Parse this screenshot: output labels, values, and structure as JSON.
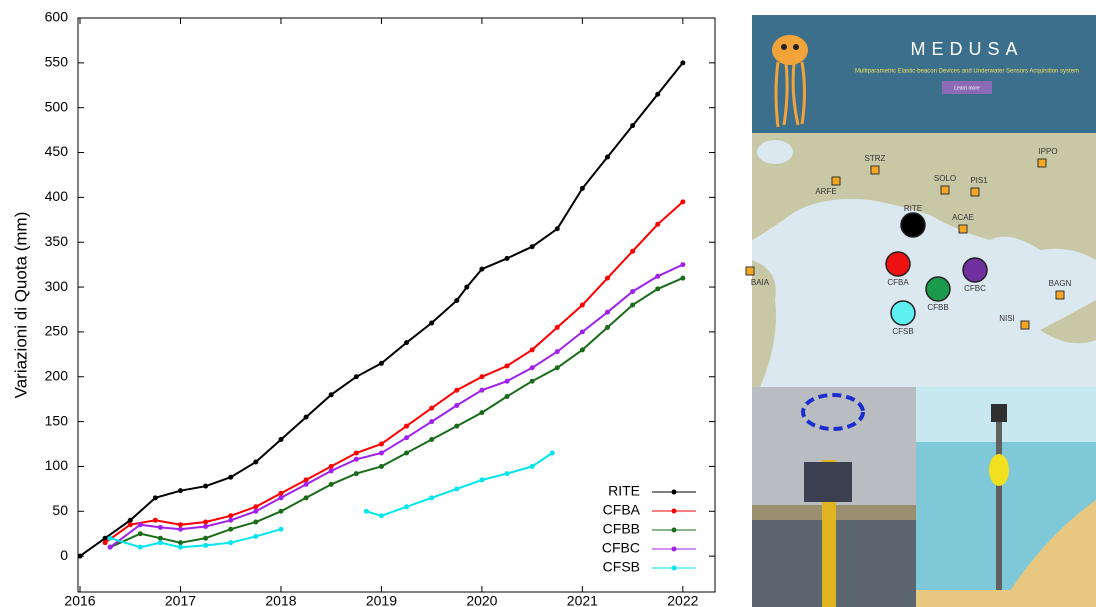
{
  "chart_data": {
    "type": "line",
    "y_label": "Variazioni di Quota (mm)",
    "xlim": [
      2015.98,
      2022.32
    ],
    "xticks": [
      2016,
      2017,
      2018,
      2019,
      2020,
      2021,
      2022
    ],
    "ylim": [
      -40,
      600
    ],
    "yticks": [
      0,
      50,
      100,
      150,
      200,
      250,
      300,
      350,
      400,
      450,
      500,
      550,
      600
    ],
    "legend": "lower right",
    "series": [
      {
        "name": "RITE",
        "color": "#000000",
        "x": [
          2016,
          2016.25,
          2016.5,
          2016.75,
          2017,
          2017.25,
          2017.5,
          2017.75,
          2018,
          2018.25,
          2018.5,
          2018.75,
          2019,
          2019.25,
          2019.5,
          2019.75,
          2019.85,
          2020,
          2020.25,
          2020.5,
          2020.75,
          2021,
          2021.25,
          2021.5,
          2021.75,
          2022
        ],
        "values": [
          0,
          20,
          40,
          65,
          73,
          78,
          88,
          105,
          130,
          155,
          180,
          200,
          215,
          238,
          260,
          285,
          300,
          320,
          332,
          345,
          365,
          410,
          445,
          480,
          515,
          550
        ]
      },
      {
        "name": "CFBA",
        "color": "#ff0000",
        "x": [
          2016.25,
          2016.5,
          2016.75,
          2017,
          2017.25,
          2017.5,
          2017.75,
          2018,
          2018.25,
          2018.5,
          2018.75,
          2019,
          2019.25,
          2019.5,
          2019.75,
          2020,
          2020.25,
          2020.5,
          2020.75,
          2021,
          2021.25,
          2021.5,
          2021.75,
          2022
        ],
        "values": [
          15,
          35,
          40,
          35,
          38,
          45,
          55,
          70,
          85,
          100,
          115,
          125,
          145,
          165,
          185,
          200,
          212,
          230,
          255,
          280,
          310,
          340,
          370,
          395
        ]
      },
      {
        "name": "CFBB",
        "color": "#1a6b1a",
        "x": [
          2016.3,
          2016.6,
          2016.8,
          2017,
          2017.25,
          2017.5,
          2017.75,
          2018,
          2018.25,
          2018.5,
          2018.75,
          2019,
          2019.25,
          2019.5,
          2019.75,
          2020,
          2020.25,
          2020.5,
          2020.75,
          2021,
          2021.25,
          2021.5,
          2021.75,
          2022
        ],
        "values": [
          10,
          25,
          20,
          15,
          20,
          30,
          38,
          50,
          65,
          80,
          92,
          100,
          115,
          130,
          145,
          160,
          178,
          195,
          210,
          230,
          255,
          280,
          298,
          310
        ]
      },
      {
        "name": "CFBC",
        "color": "#a020f0",
        "x": [
          2016.3,
          2016.6,
          2016.8,
          2017,
          2017.25,
          2017.5,
          2017.75,
          2018,
          2018.25,
          2018.5,
          2018.75,
          2019,
          2019.25,
          2019.5,
          2019.75,
          2020,
          2020.25,
          2020.5,
          2020.75,
          2021,
          2021.25,
          2021.5,
          2021.75,
          2022
        ],
        "values": [
          10,
          35,
          32,
          30,
          33,
          40,
          50,
          65,
          80,
          95,
          108,
          115,
          132,
          150,
          168,
          185,
          195,
          210,
          228,
          250,
          272,
          295,
          312,
          325
        ]
      },
      {
        "name": "CFSB",
        "color": "#00e5ee",
        "x": [
          2016.3,
          2016.6,
          2016.8,
          2017,
          2017.25,
          2017.5,
          2017.75,
          2018,
          2018.5,
          2018.85,
          2019,
          2019.25,
          2019.5,
          2019.75,
          2020,
          2020.25,
          2020.5,
          2020.7
        ],
        "values": [
          20,
          10,
          15,
          10,
          12,
          15,
          22,
          30,
          null,
          50,
          45,
          55,
          65,
          75,
          85,
          92,
          100,
          115
        ]
      }
    ]
  },
  "side": {
    "banner": {
      "title": "MEDUSA",
      "subtitle": "Multiparametric Elastic-beacon Devices and Underwater Sensors Acquisition system",
      "button": "Learn more"
    },
    "stations": [
      "STRZ",
      "SOLO",
      "PIS1",
      "IPPO",
      "ARFE",
      "ACAE",
      "BAIA",
      "BAGN",
      "NISI"
    ],
    "buoys": [
      {
        "name": "RITE",
        "color": "#000000"
      },
      {
        "name": "CFBA",
        "color": "#ee1111"
      },
      {
        "name": "CFBB",
        "color": "#1a9a4a"
      },
      {
        "name": "CFBC",
        "color": "#7030a0"
      },
      {
        "name": "CFSB",
        "color": "#5ef0f0"
      }
    ]
  }
}
